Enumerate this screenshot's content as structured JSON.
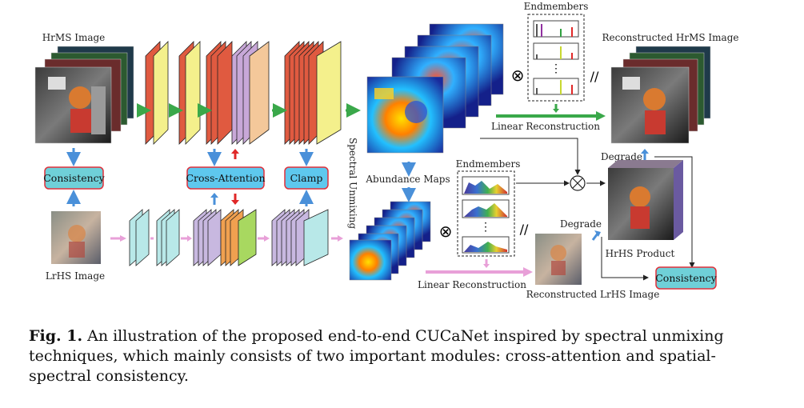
{
  "labels": {
    "hrms_image": "HrMS Image",
    "lrhs_image": "LrHS Image",
    "consistency_left": "Consistency",
    "cross_attention": "Cross-Attention",
    "clamp": "Clamp",
    "spectral_unmixing": "Spectral Unmixing",
    "abundance_maps": "Abundance Maps",
    "endmembers_top": "Endmembers",
    "endmembers_bottom": "Endmembers",
    "linear_reconstruction_top": "Linear Reconstruction",
    "linear_reconstruction_bottom": "Linear Reconstruction",
    "reconstructed_hrms": "Reconstructed HrMS Image",
    "reconstructed_lrhs": "Reconstructed LrHS Image",
    "degrade_top": "Degrade",
    "degrade_bottom": "Degrade",
    "hrhs_product": "HrHS Product",
    "consistency_right": "Consistency",
    "ellipsis": "⋮",
    "otimes": "⊗",
    "equals": "//"
  },
  "caption": {
    "fig_label": "Fig. 1.",
    "text": "An illustration of the proposed end-to-end CUCaNet inspired by spectral unmixing techniques, which mainly consists of two important modules: cross-attention and spatial-spectral consistency."
  },
  "colors": {
    "box_fill": "#5ec8ee",
    "box_border": "#e0303a",
    "consistency_fill": "#6fd0d8",
    "arrow_green": "#3aa84a",
    "arrow_blue": "#4a90d9",
    "arrow_pink": "#e8a0d8",
    "arrow_red": "#e02828"
  }
}
